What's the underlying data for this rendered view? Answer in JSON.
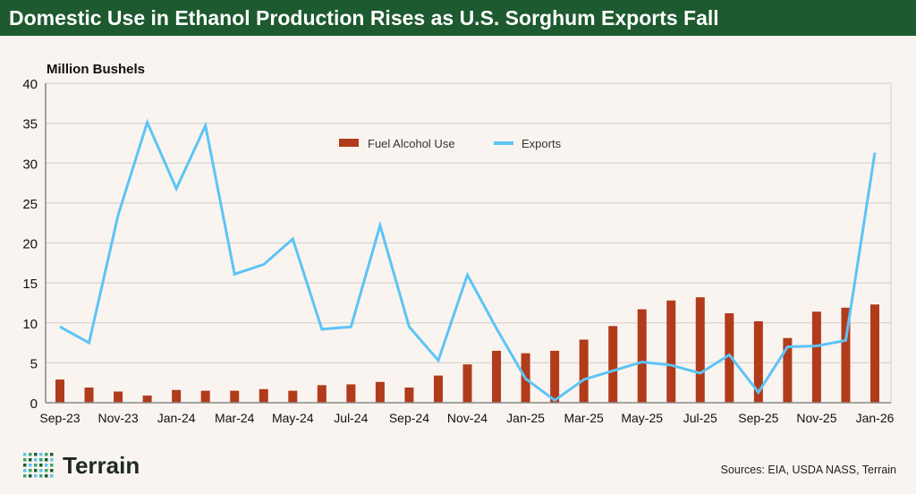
{
  "header": {
    "title": "Domestic Use in Ethanol Production Rises as U.S. Sorghum Exports Fall"
  },
  "footer": {
    "logo": "Terrain",
    "sources": "Sources: EIA, USDA NASS, Terrain"
  },
  "colors": {
    "header_bg": "#1d5a2f",
    "bar": "#b13b1b",
    "line": "#5cc4f7"
  },
  "chart_data": {
    "type": "bar+line",
    "ylabel": "Million Bushels",
    "ylim": [
      0,
      40
    ],
    "yticks": [
      0,
      5,
      10,
      15,
      20,
      25,
      30,
      35,
      40
    ],
    "grid": true,
    "legend_placement": "top-center",
    "categories": [
      "Sep-23",
      "Oct-23",
      "Nov-23",
      "Dec-23",
      "Jan-24",
      "Feb-24",
      "Mar-24",
      "Apr-24",
      "May-24",
      "Jun-24",
      "Jul-24",
      "Aug-24",
      "Sep-24",
      "Oct-24",
      "Nov-24",
      "Dec-24",
      "Jan-25",
      "Feb-25",
      "Mar-25",
      "Apr-25",
      "May-25",
      "Jun-25",
      "Jul-25",
      "Aug-25",
      "Sep-25",
      "Oct-25",
      "Nov-25",
      "Dec-25",
      "Jan-26"
    ],
    "xtick_labels": [
      "Sep-23",
      "Nov-23",
      "Jan-24",
      "Mar-24",
      "May-24",
      "Jul-24",
      "Sep-24",
      "Nov-24",
      "Jan-25",
      "Mar-25",
      "May-25",
      "Jul-25",
      "Sep-25",
      "Nov-25",
      "Jan-26"
    ],
    "series": [
      {
        "name": "Fuel Alcohol Use",
        "type": "bar",
        "values": [
          2.9,
          1.9,
          1.4,
          0.9,
          1.6,
          1.5,
          1.5,
          1.7,
          1.5,
          2.2,
          2.3,
          2.6,
          1.9,
          3.4,
          4.8,
          6.5,
          6.2,
          6.5,
          7.9,
          9.6,
          11.7,
          12.8,
          13.2,
          11.2,
          10.2,
          8.1,
          11.4,
          11.9,
          12.3
        ]
      },
      {
        "name": "Exports",
        "type": "line",
        "values": [
          9.5,
          7.5,
          23.5,
          35.1,
          26.8,
          34.7,
          16.1,
          17.3,
          20.5,
          9.2,
          9.5,
          22.2,
          9.5,
          5.3,
          16.0,
          9.3,
          3.0,
          0.3,
          2.9,
          4.0,
          5.1,
          4.7,
          3.7,
          6.0,
          1.3,
          7.0,
          7.1,
          7.8,
          31.3
        ]
      }
    ]
  }
}
